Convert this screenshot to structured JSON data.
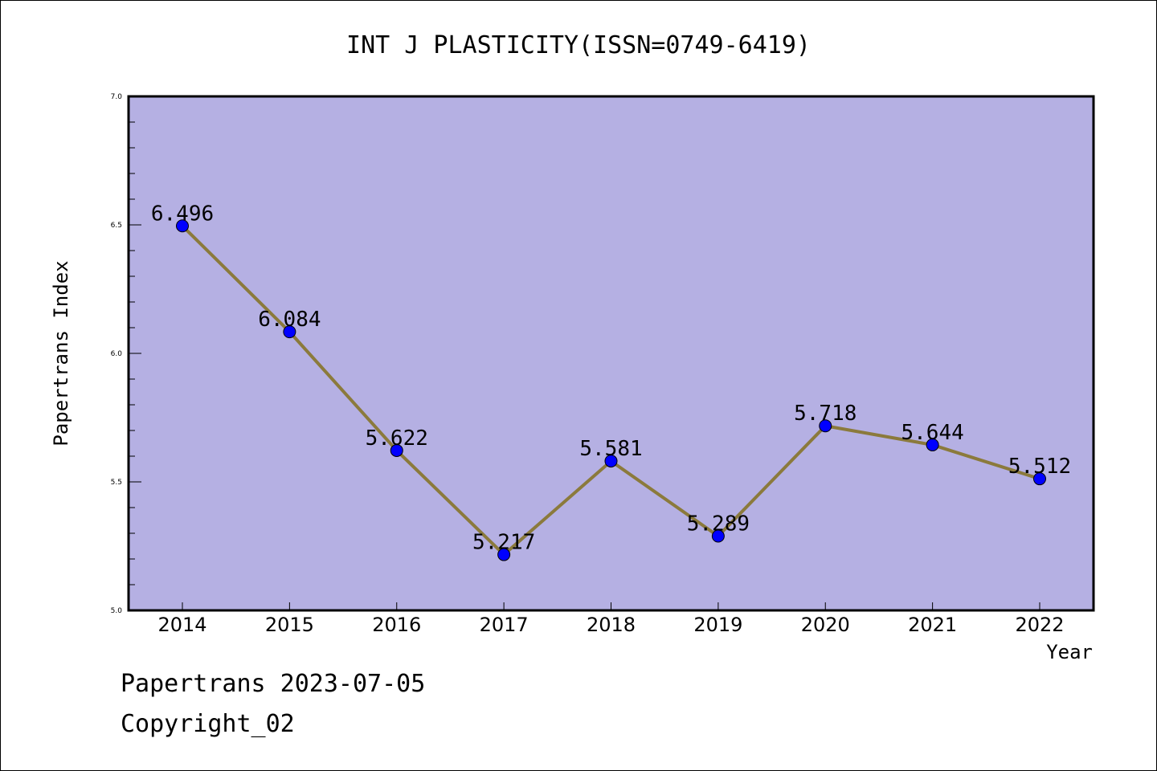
{
  "chart_data": {
    "type": "line",
    "title": "INT J PLASTICITY(ISSN=0749-6419)",
    "xlabel": "Year",
    "ylabel": "Papertrans Index",
    "categories": [
      "2014",
      "2015",
      "2016",
      "2017",
      "2018",
      "2019",
      "2020",
      "2021",
      "2022"
    ],
    "series": [
      {
        "values": [
          6.496,
          6.084,
          5.622,
          5.217,
          5.581,
          5.289,
          5.718,
          5.644,
          5.512
        ],
        "labels": [
          "6.496",
          "6.084",
          "5.622",
          "5.217",
          "5.581",
          "5.289",
          "5.718",
          "5.644",
          "5.512"
        ]
      }
    ],
    "ylim": [
      5.0,
      7.0
    ],
    "yticks": [
      5.0,
      5.5,
      6.0,
      6.5,
      7.0
    ],
    "ytick_labels": [
      "5.0",
      "5.5",
      "6.0",
      "6.5",
      "7.0"
    ],
    "grid": false,
    "colors": {
      "plot_background": "#b5b0e3",
      "line": "#8b7a3c",
      "marker": "#0000ff"
    }
  },
  "footer": {
    "date_line": "Papertrans 2023-07-05",
    "copyright_line": "Copyright_02"
  }
}
